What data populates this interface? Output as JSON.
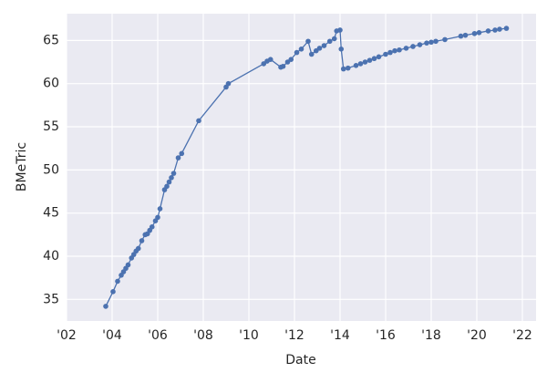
{
  "chart_data": {
    "type": "line",
    "x_label": "Date",
    "y_label": "BMeTric",
    "color": "#4c72b0",
    "grid": true,
    "x": [
      2003.72,
      2004.04,
      2004.24,
      2004.4,
      2004.5,
      2004.6,
      2004.7,
      2004.85,
      2004.95,
      2005.05,
      2005.15,
      2005.3,
      2005.45,
      2005.55,
      2005.65,
      2005.75,
      2005.9,
      2006.0,
      2006.1,
      2006.3,
      2006.4,
      2006.5,
      2006.6,
      2006.7,
      2006.9,
      2007.05,
      2007.8,
      2009.0,
      2009.1,
      2010.65,
      2010.8,
      2010.95,
      2011.4,
      2011.5,
      2011.7,
      2011.85,
      2012.1,
      2012.3,
      2012.6,
      2012.75,
      2012.95,
      2013.1,
      2013.3,
      2013.55,
      2013.75,
      2013.85,
      2014.0,
      2014.05,
      2014.15,
      2014.35,
      2014.7,
      2014.9,
      2015.1,
      2015.3,
      2015.5,
      2015.7,
      2016.0,
      2016.2,
      2016.4,
      2016.6,
      2016.9,
      2017.2,
      2017.5,
      2017.8,
      2018.0,
      2018.2,
      2018.6,
      2019.3,
      2019.5,
      2019.9,
      2020.1,
      2020.5,
      2020.8,
      2021.0,
      2021.3
    ],
    "values": [
      34.2,
      35.9,
      37.1,
      37.8,
      38.2,
      38.6,
      39.0,
      39.8,
      40.2,
      40.6,
      40.9,
      41.8,
      42.5,
      42.6,
      43.0,
      43.4,
      44.1,
      44.5,
      45.5,
      47.7,
      48.1,
      48.6,
      49.1,
      49.6,
      51.4,
      51.9,
      55.7,
      59.6,
      60.0,
      62.3,
      62.6,
      62.8,
      61.9,
      62.0,
      62.5,
      62.8,
      63.6,
      64.0,
      64.9,
      63.4,
      63.8,
      64.1,
      64.4,
      64.9,
      65.2,
      66.1,
      66.2,
      64.0,
      61.7,
      61.8,
      62.1,
      62.3,
      62.5,
      62.7,
      62.9,
      63.1,
      63.4,
      63.6,
      63.8,
      63.9,
      64.1,
      64.3,
      64.5,
      64.7,
      64.8,
      64.9,
      65.1,
      65.5,
      65.6,
      65.8,
      65.9,
      66.1,
      66.2,
      66.3,
      66.4
    ],
    "xlim": [
      2002,
      2022.6
    ],
    "ylim": [
      32.5,
      68.1
    ],
    "xticks": [
      {
        "value": 2002,
        "label": "'02"
      },
      {
        "value": 2004,
        "label": "'04"
      },
      {
        "value": 2006,
        "label": "'06"
      },
      {
        "value": 2008,
        "label": "'08"
      },
      {
        "value": 2010,
        "label": "'10"
      },
      {
        "value": 2012,
        "label": "'12"
      },
      {
        "value": 2014,
        "label": "'14"
      },
      {
        "value": 2016,
        "label": "'16"
      },
      {
        "value": 2018,
        "label": "'18"
      },
      {
        "value": 2020,
        "label": "'20"
      },
      {
        "value": 2022,
        "label": "'22"
      }
    ],
    "yticks": [
      35,
      40,
      45,
      50,
      55,
      60,
      65
    ]
  }
}
